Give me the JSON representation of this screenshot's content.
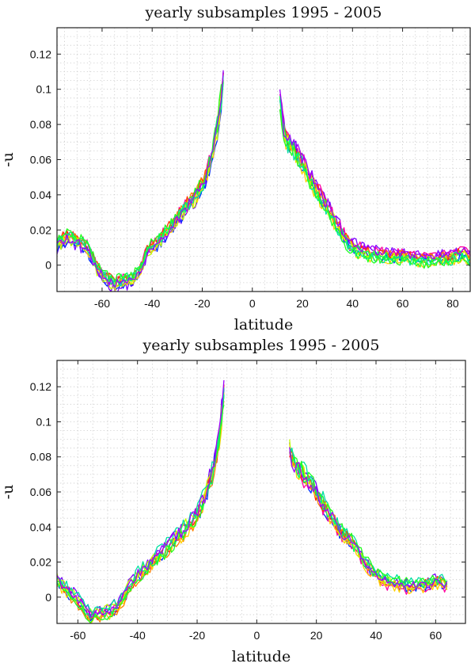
{
  "chart_data": [
    {
      "type": "line",
      "title": "yearly subsamples 1995 - 2005",
      "xlabel": "latitude",
      "ylabel": "-u",
      "xlim": [
        -78,
        87
      ],
      "ylim": [
        -0.015,
        0.135
      ],
      "xticks": [
        -60,
        -40,
        -20,
        0,
        20,
        40,
        60,
        80
      ],
      "yticks": [
        0,
        0.02,
        0.04,
        0.06,
        0.08,
        0.1,
        0.12
      ],
      "xtick_labels": [
        "-60",
        "-40",
        "-20",
        "0",
        "20",
        "40",
        "60",
        "80"
      ],
      "ytick_labels": [
        "0",
        "0.02",
        "0.04",
        "0.06",
        "0.08",
        "0.1",
        "0.12"
      ],
      "grid": true,
      "legend": "none",
      "series_colors": [
        "#7a00ff",
        "#0030ff",
        "#ff00a0",
        "#ff3000",
        "#ff8000",
        "#ffd000",
        "#c0ff00",
        "#00ff60",
        "#00e0a0",
        "#20ff20",
        "#a000ff"
      ],
      "segments": [
        {
          "x": [
            -78,
            -74,
            -70,
            -66,
            -62,
            -58,
            -55,
            -52,
            -48,
            -45,
            -42,
            -38,
            -34,
            -30,
            -26,
            -22,
            -19,
            -16,
            -14,
            -12,
            -11
          ],
          "y": [
            0.012,
            0.016,
            0.014,
            0.01,
            -0.002,
            -0.008,
            -0.011,
            -0.009,
            -0.008,
            -0.004,
            0.008,
            0.013,
            0.019,
            0.026,
            0.034,
            0.04,
            0.048,
            0.062,
            0.078,
            0.098,
            0.118
          ]
        },
        {
          "x": [
            11,
            12,
            13,
            15,
            17,
            20,
            23,
            26,
            29,
            32,
            35,
            38,
            42,
            46,
            50,
            55,
            60,
            65,
            70,
            75,
            80,
            84,
            87
          ],
          "y": [
            0.092,
            0.082,
            0.074,
            0.069,
            0.065,
            0.058,
            0.05,
            0.042,
            0.035,
            0.028,
            0.02,
            0.013,
            0.009,
            0.007,
            0.006,
            0.005,
            0.005,
            0.004,
            0.003,
            0.004,
            0.005,
            0.007,
            0.004
          ]
        }
      ]
    },
    {
      "type": "line",
      "title": "yearly subsamples 1995 - 2005",
      "xlabel": "latitude",
      "ylabel": "-u",
      "xlim": [
        -67,
        70
      ],
      "ylim": [
        -0.015,
        0.135
      ],
      "xticks": [
        -60,
        -40,
        -20,
        0,
        20,
        40,
        60
      ],
      "yticks": [
        0,
        0.02,
        0.04,
        0.06,
        0.08,
        0.1,
        0.12
      ],
      "xtick_labels": [
        "-60",
        "-40",
        "-20",
        "0",
        "20",
        "40",
        "60"
      ],
      "ytick_labels": [
        "0",
        "0.02",
        "0.04",
        "0.06",
        "0.08",
        "0.1",
        "0.12"
      ],
      "grid": true,
      "legend": "none",
      "series_colors": [
        "#7a00ff",
        "#0030ff",
        "#ff00a0",
        "#ff3000",
        "#ff8000",
        "#ffd000",
        "#c0ff00",
        "#00ff60",
        "#00e0a0",
        "#20ff20",
        "#a000ff"
      ],
      "segments": [
        {
          "x": [
            -67,
            -64,
            -61,
            -58,
            -56,
            -54,
            -52,
            -49,
            -46,
            -43,
            -40,
            -36,
            -32,
            -28,
            -24,
            -21,
            -18,
            -15,
            -13,
            -12,
            -11
          ],
          "y": [
            0.01,
            0.004,
            0.0,
            -0.006,
            -0.011,
            -0.01,
            -0.009,
            -0.008,
            -0.004,
            0.005,
            0.012,
            0.018,
            0.025,
            0.032,
            0.039,
            0.044,
            0.054,
            0.07,
            0.086,
            0.1,
            0.118
          ]
        },
        {
          "x": [
            11,
            12,
            13,
            15,
            17,
            19,
            21,
            24,
            27,
            30,
            33,
            36,
            39,
            42,
            45,
            48,
            51,
            54,
            57,
            60,
            62,
            64
          ],
          "y": [
            0.085,
            0.078,
            0.074,
            0.071,
            0.067,
            0.062,
            0.056,
            0.048,
            0.04,
            0.034,
            0.028,
            0.02,
            0.014,
            0.01,
            0.008,
            0.007,
            0.006,
            0.006,
            0.007,
            0.009,
            0.008,
            0.006
          ]
        }
      ]
    }
  ]
}
